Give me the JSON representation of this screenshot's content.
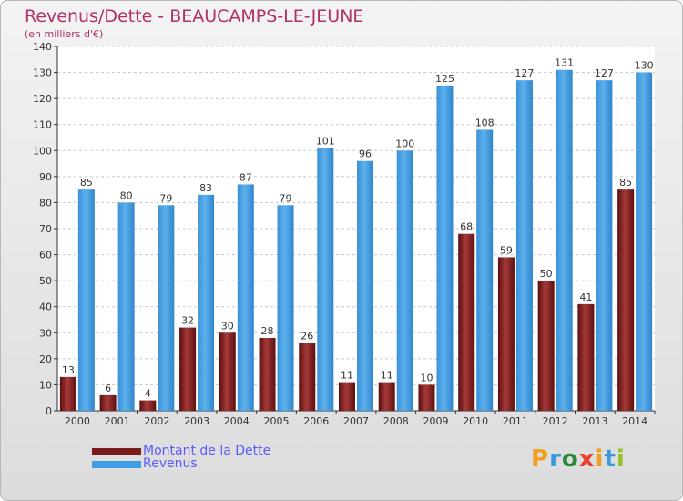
{
  "header": {
    "title": "Revenus/Dette - BEAUCAMPS-LE-JEUNE",
    "subtitle": "(en milliers d'€)"
  },
  "logo": {
    "letters": [
      "P",
      "r",
      "o",
      "x",
      "i",
      "t",
      "i"
    ],
    "colors": [
      "#f0a020",
      "#3a9ad9",
      "#2a8a3a",
      "#e8402a",
      "#f0a020",
      "#3a9ad9",
      "#9ac02a"
    ]
  },
  "colors": {
    "dette": "#7a1c1c",
    "revenus": "#3f9de4",
    "title": "#b0306a",
    "legend_text": "#5a5aff"
  },
  "chart_data": {
    "type": "bar",
    "categories": [
      "2000",
      "2001",
      "2002",
      "2003",
      "2004",
      "2005",
      "2006",
      "2007",
      "2008",
      "2009",
      "2010",
      "2011",
      "2012",
      "2013",
      "2014"
    ],
    "series": [
      {
        "name": "Montant de la Dette",
        "values": [
          13,
          6,
          4,
          32,
          30,
          28,
          26,
          11,
          11,
          10,
          68,
          59,
          50,
          41,
          85
        ]
      },
      {
        "name": "Revenus",
        "values": [
          85,
          80,
          79,
          83,
          87,
          79,
          101,
          96,
          100,
          125,
          108,
          127,
          131,
          127,
          130
        ]
      }
    ],
    "title": "Revenus/Dette - BEAUCAMPS-LE-JEUNE",
    "subtitle": "(en milliers d'€)",
    "ylim": [
      0,
      140
    ],
    "yticks": [
      0,
      10,
      20,
      30,
      40,
      50,
      60,
      70,
      80,
      90,
      100,
      110,
      120,
      130,
      140
    ],
    "grid": true,
    "legend_position": "bottom-left"
  }
}
